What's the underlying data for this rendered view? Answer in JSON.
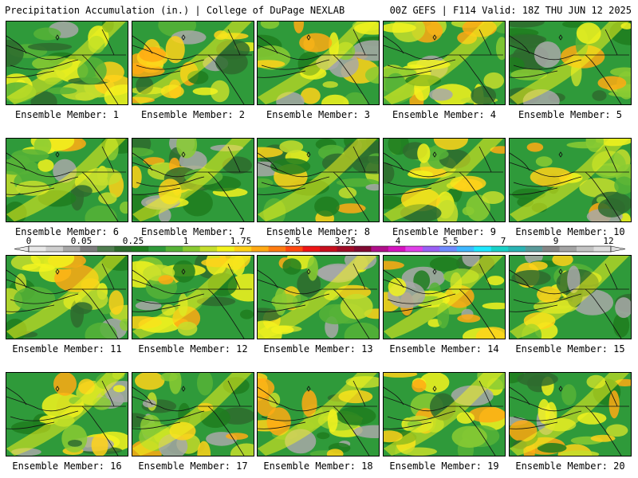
{
  "header": {
    "title": "Precipitation Accumulation (in.) | College of DuPage NEXLAB",
    "run_info": "00Z GEFS | F114 Valid: 18Z THU JUN 12 2025"
  },
  "colorbar": {
    "labels": [
      "0",
      "0.05",
      "0.25",
      "1",
      "1.75",
      "2.5",
      "3.25",
      "4",
      "5.5",
      "7",
      "9",
      "12"
    ],
    "colors": [
      "#e8e8e8",
      "#cfcfcf",
      "#a8a8a8",
      "#7d7d7d",
      "#4f7d4f",
      "#2e6b2e",
      "#1f7d1f",
      "#2f9a3a",
      "#56b337",
      "#8acb32",
      "#c5de2d",
      "#f3f31e",
      "#ffd21a",
      "#ffaa14",
      "#ff7c12",
      "#ff4a10",
      "#ee1616",
      "#c8101e",
      "#a00d28",
      "#800a32",
      "#b0108a",
      "#d514c0",
      "#e040e8",
      "#9a60f5",
      "#6f8cff",
      "#3fb8ff",
      "#1fe8ff",
      "#19d2c8",
      "#2ab4b4",
      "#5a9a9a",
      "#868686",
      "#a4a4a4",
      "#c4c4c4",
      "#dedede"
    ]
  },
  "members": [
    {
      "label": "Ensemble Member: 1"
    },
    {
      "label": "Ensemble Member: 2"
    },
    {
      "label": "Ensemble Member: 3"
    },
    {
      "label": "Ensemble Member: 4"
    },
    {
      "label": "Ensemble Member: 5"
    },
    {
      "label": "Ensemble Member: 6"
    },
    {
      "label": "Ensemble Member: 7"
    },
    {
      "label": "Ensemble Member: 8"
    },
    {
      "label": "Ensemble Member: 9"
    },
    {
      "label": "Ensemble Member: 10"
    },
    {
      "label": "Ensemble Member: 11"
    },
    {
      "label": "Ensemble Member: 12"
    },
    {
      "label": "Ensemble Member: 13"
    },
    {
      "label": "Ensemble Member: 14"
    },
    {
      "label": "Ensemble Member: 15"
    },
    {
      "label": "Ensemble Member: 16"
    },
    {
      "label": "Ensemble Member: 17"
    },
    {
      "label": "Ensemble Member: 18"
    },
    {
      "label": "Ensemble Member: 19"
    },
    {
      "label": "Ensemble Member: 20"
    }
  ]
}
